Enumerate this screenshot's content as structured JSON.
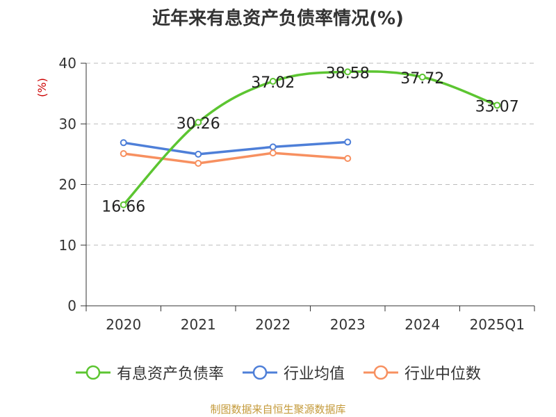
{
  "title": "近年来有息资产负债率情况(%)",
  "source": "制图数据来自恒生聚源数据库",
  "chart_data": {
    "type": "line",
    "title": "近年来有息资产负债率情况(%)",
    "ylabel": "(%)",
    "xlabel": "",
    "categories": [
      "2020",
      "2021",
      "2022",
      "2023",
      "2024",
      "2025Q1"
    ],
    "ylim": [
      0,
      40
    ],
    "yticks": [
      0,
      10,
      20,
      30,
      40
    ],
    "grid": true,
    "legend_position": "bottom",
    "series": [
      {
        "name": "有息资产负债率",
        "color": "#5cc531",
        "values": [
          16.66,
          30.26,
          37.02,
          38.58,
          37.72,
          33.07
        ],
        "labels": [
          "16.66",
          "30.26",
          "37.02",
          "38.58",
          "37.72",
          "33.07"
        ],
        "smooth": true
      },
      {
        "name": "行业均值",
        "color": "#4e7fd8",
        "values": [
          26.9,
          25.0,
          26.2,
          27.0,
          null,
          null
        ]
      },
      {
        "name": "行业中位数",
        "color": "#f79060",
        "values": [
          25.1,
          23.5,
          25.2,
          24.3,
          null,
          null
        ]
      }
    ]
  }
}
